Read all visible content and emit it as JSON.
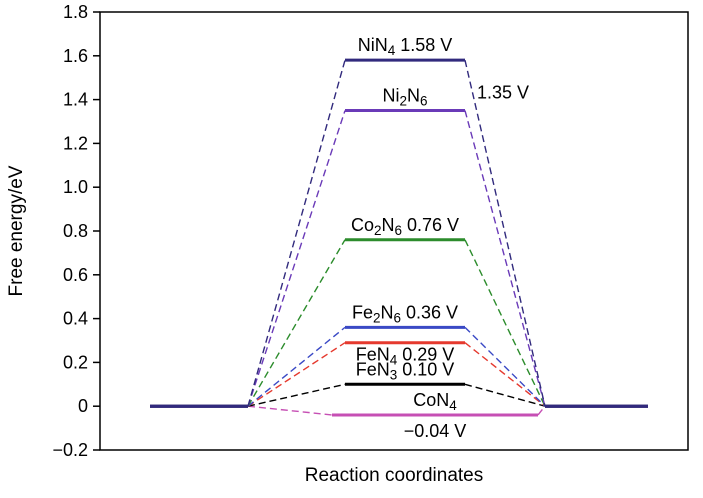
{
  "chart_data": {
    "type": "line",
    "subtype": "free-energy-diagram",
    "title": "",
    "xlabel": "Reaction coordinates",
    "ylabel": "Free energy/eV",
    "ylim": [
      -0.2,
      1.8
    ],
    "ytick_values": [
      1.8,
      1.6,
      1.4,
      1.2,
      1.0,
      0.8,
      0.6,
      0.4,
      0.2,
      0,
      -0.2
    ],
    "ytick_labels": [
      "1.8",
      "1.6",
      "1.4",
      "1.2",
      "1.0",
      "0.8",
      "0.6",
      "0.4",
      "0.2",
      "0",
      "−0.2"
    ],
    "grid": false,
    "legend_position": "labels-inline",
    "stage_pattern": [
      0,
      "energy",
      0
    ],
    "series": [
      {
        "formula": "NiN4",
        "energy": 1.58,
        "value_label": "1.58 V",
        "color": "#312a7d",
        "label_position": "above",
        "value_position": "inline"
      },
      {
        "formula": "Ni2N6",
        "energy": 1.35,
        "value_label": "1.35 V",
        "color": "#6a3ab8",
        "label_position": "above",
        "value_position": "right"
      },
      {
        "formula": "Co2N6",
        "energy": 0.76,
        "value_label": "0.76 V",
        "color": "#2c8c2c",
        "label_position": "above",
        "value_position": "inline"
      },
      {
        "formula": "Fe2N6",
        "energy": 0.36,
        "value_label": "0.36 V",
        "color": "#3a49c5",
        "label_position": "above",
        "value_position": "inline"
      },
      {
        "formula": "FeN4",
        "energy": 0.29,
        "value_label": "0.29 V",
        "color": "#e5392e",
        "label_position": "below",
        "value_position": "inline"
      },
      {
        "formula": "FeN3",
        "energy": 0.1,
        "value_label": "0.10 V",
        "color": "#000000",
        "label_position": "above",
        "value_position": "inline"
      },
      {
        "formula": "CoN4",
        "energy": -0.04,
        "value_label": "−0.04 V",
        "color": "#c64fb4",
        "label_position": "above",
        "value_position": "below",
        "wide_mid": true
      }
    ]
  }
}
